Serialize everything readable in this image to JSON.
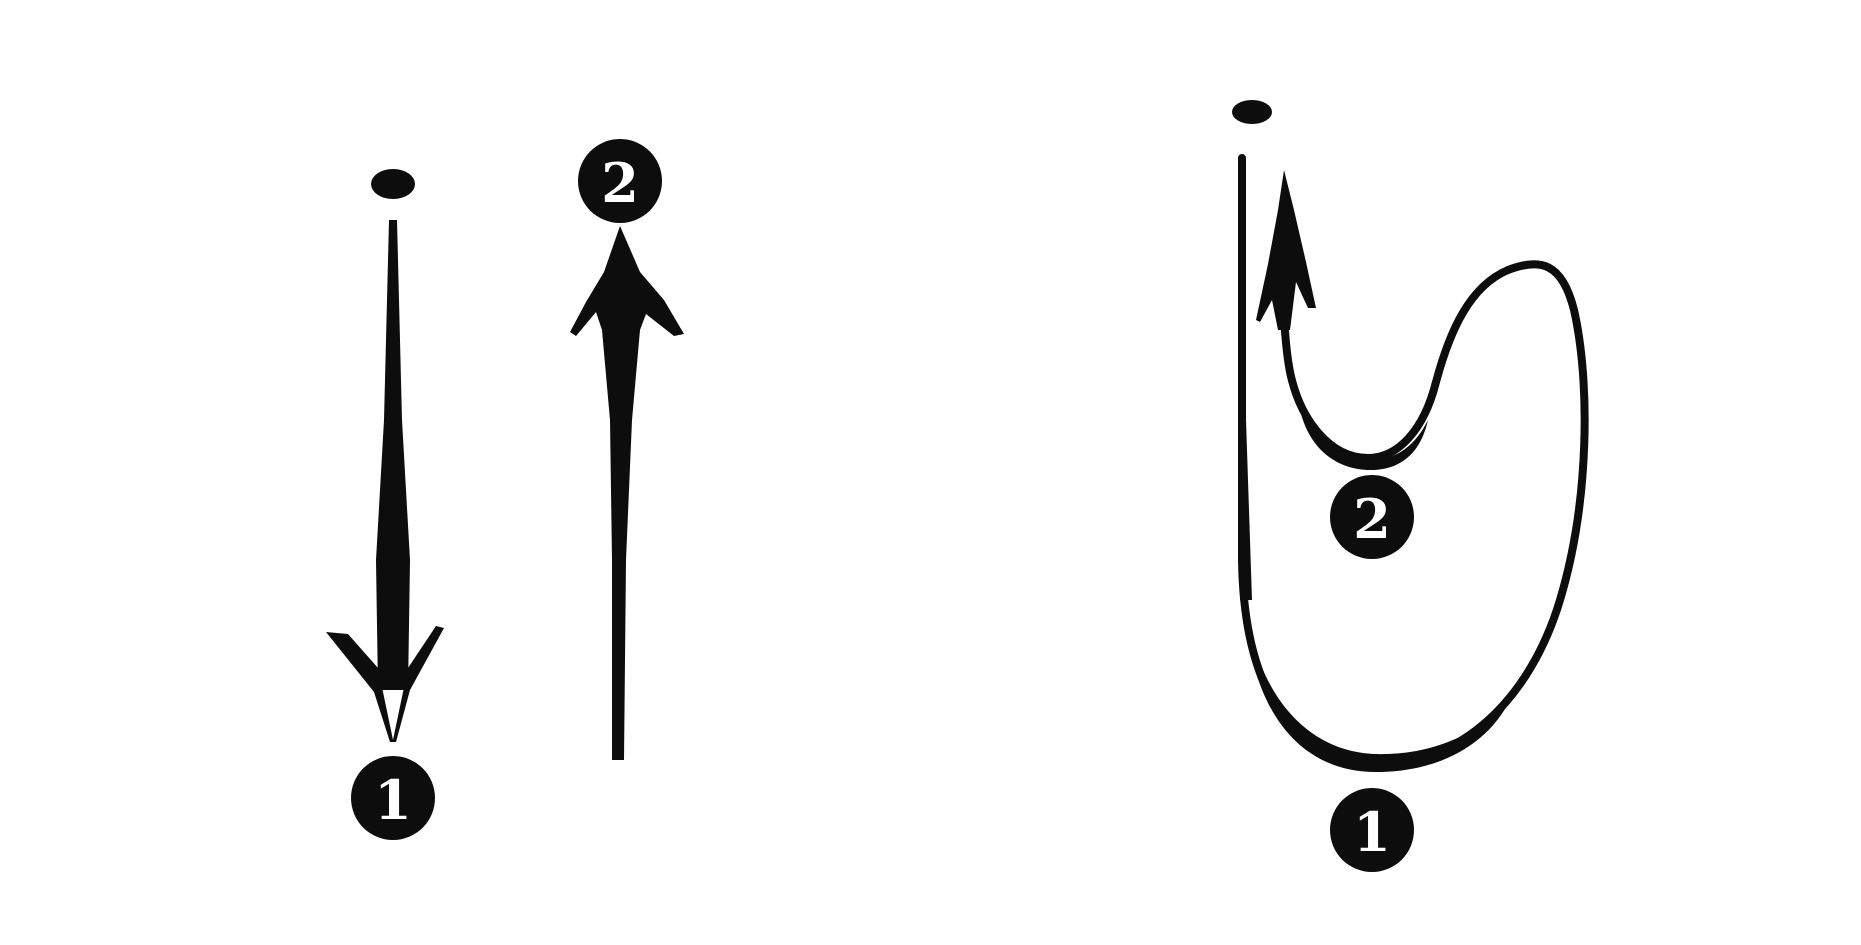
{
  "figure": {
    "description_free": true,
    "colors": {
      "ink": "#0d0d0d",
      "badge_fill": "#0d0d0d",
      "badge_text": "#ffffff",
      "background": "#ffffff"
    },
    "left_diagram": {
      "step_down_label": "1",
      "step_up_label": "2"
    },
    "right_diagram": {
      "bottom_label": "1",
      "inner_label": "2"
    }
  }
}
